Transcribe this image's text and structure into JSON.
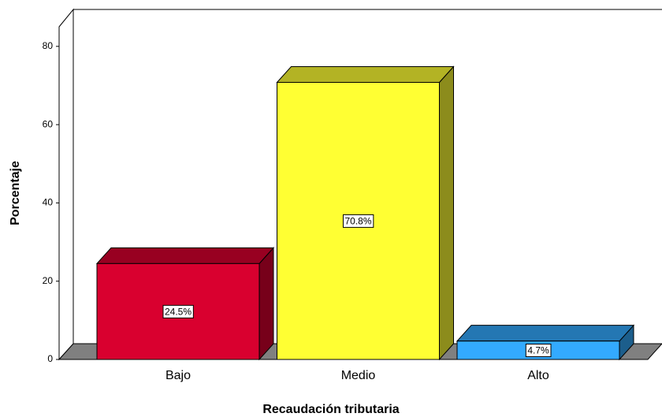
{
  "chart_data": {
    "type": "bar3d",
    "categories": [
      "Bajo",
      "Medio",
      "Alto"
    ],
    "values": [
      24.5,
      70.8,
      4.7
    ],
    "value_labels": [
      "24.5%",
      "70.8%",
      "4.7%"
    ],
    "colors": [
      "#d9002f",
      "#ffff33",
      "#33aaff"
    ],
    "y_label": "Porcentaje",
    "x_label": "Recaudación tributaria",
    "ylim": [
      0,
      85
    ],
    "yticks": [
      0,
      20,
      40,
      60,
      80
    ]
  }
}
